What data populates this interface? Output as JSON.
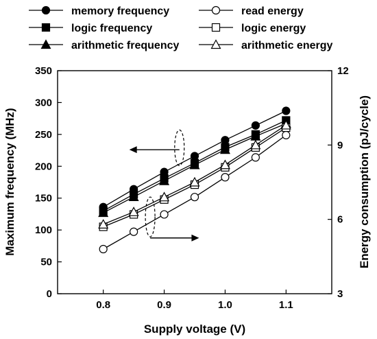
{
  "chart_data": {
    "type": "line",
    "x": [
      0.8,
      0.85,
      0.9,
      0.95,
      1.0,
      1.05,
      1.1
    ],
    "xlabel": "Supply voltage  (V)",
    "ylabel": "Maximum frequency  (MHz)",
    "y2label": "Energy consumption  (pJ/cycle)",
    "xlim": [
      0.725,
      1.175
    ],
    "ylim": [
      0,
      350
    ],
    "y2lim": [
      3,
      12
    ],
    "xticks": [
      0.8,
      0.9,
      1.0,
      1.1
    ],
    "xtick_labels": [
      "0.8",
      "0.9",
      "1.0",
      "1.1"
    ],
    "yticks": [
      0,
      50,
      100,
      150,
      200,
      250,
      300,
      350
    ],
    "ytick_labels": [
      "0",
      "50",
      "100",
      "150",
      "200",
      "250",
      "300",
      "350"
    ],
    "y2ticks": [
      3,
      6,
      9,
      12
    ],
    "y2tick_labels": [
      "3",
      "6",
      "9",
      "12"
    ],
    "grid": false,
    "legend_position": "top",
    "series": [
      {
        "name": "memory frequency",
        "axis": "left",
        "marker": "circle",
        "filled": true,
        "values": [
          136,
          164,
          191,
          216,
          241,
          264,
          287
        ]
      },
      {
        "name": "logic frequency",
        "axis": "left",
        "marker": "square",
        "filled": true,
        "values": [
          130,
          156,
          181,
          205,
          230,
          250,
          272
        ]
      },
      {
        "name": "arithmetic frequency",
        "axis": "left",
        "marker": "triangle",
        "filled": true,
        "values": [
          127,
          152,
          177,
          202,
          226,
          247,
          267
        ]
      },
      {
        "name": "read energy",
        "axis": "right",
        "marker": "circle",
        "filled": false,
        "values": [
          4.8,
          5.5,
          6.2,
          6.9,
          7.7,
          8.5,
          9.4
        ]
      },
      {
        "name": "logic energy",
        "axis": "right",
        "marker": "square",
        "filled": false,
        "values": [
          5.7,
          6.2,
          6.8,
          7.4,
          8.1,
          8.9,
          9.7
        ]
      },
      {
        "name": "arithmetic energy",
        "axis": "right",
        "marker": "triangle",
        "filled": false,
        "values": [
          5.8,
          6.3,
          6.9,
          7.5,
          8.2,
          9.0,
          9.8
        ]
      }
    ]
  },
  "colors": {
    "ink": "#000000",
    "background": "#ffffff"
  }
}
